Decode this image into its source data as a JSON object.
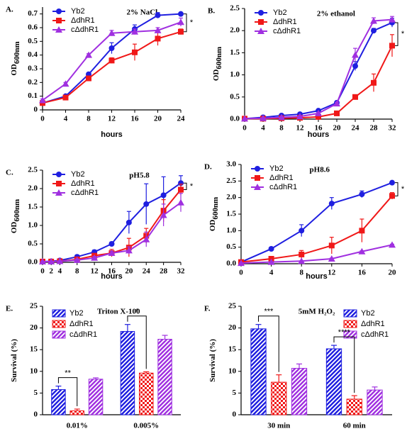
{
  "chart_data": [
    {
      "type": "line",
      "panel": "A.",
      "title": "2% NaCl",
      "xlabel": "hours",
      "ylabel": "OD",
      "ylabel_subscript": "600nm",
      "significance": "*",
      "legend": "upper left",
      "x": [
        0,
        4,
        8,
        12,
        16,
        20,
        24
      ],
      "xlim": [
        0,
        24
      ],
      "xticks": [
        0,
        4,
        8,
        12,
        16,
        20,
        24
      ],
      "ylim": [
        0,
        0.75
      ],
      "yticks": [
        0,
        0.1,
        0.2,
        0.3,
        0.4,
        0.5,
        0.6,
        0.7
      ],
      "series": [
        {
          "name": "Yb2",
          "color": "#1f1fe0",
          "marker": "circle",
          "values": [
            0.05,
            0.1,
            0.26,
            0.45,
            0.59,
            0.69,
            0.7
          ],
          "errors": [
            0.01,
            0.01,
            0.01,
            0.04,
            0.03,
            0.02,
            0.01
          ]
        },
        {
          "name": "ΔdhR1",
          "color": "#f01818",
          "marker": "square",
          "values": [
            0.05,
            0.09,
            0.23,
            0.36,
            0.42,
            0.52,
            0.57
          ],
          "errors": [
            0.01,
            0.01,
            0.01,
            0.02,
            0.06,
            0.05,
            0.02
          ]
        },
        {
          "name": "cΔdhR1",
          "color": "#a030e0",
          "marker": "triangle",
          "values": [
            0.07,
            0.19,
            0.4,
            0.56,
            0.57,
            0.58,
            0.64
          ],
          "errors": [
            0.01,
            0.01,
            0.01,
            0.02,
            0.02,
            0.02,
            0.03
          ]
        }
      ]
    },
    {
      "type": "line",
      "panel": "B.",
      "title": "2% ethanol",
      "xlabel": "hours",
      "ylabel": "OD",
      "ylabel_subscript": "600nm",
      "significance": "*",
      "legend": "upper left",
      "x": [
        0,
        4,
        8,
        12,
        16,
        20,
        24,
        28,
        32
      ],
      "xlim": [
        0,
        32
      ],
      "xticks": [
        0,
        4,
        8,
        12,
        16,
        20,
        24,
        28,
        32
      ],
      "ylim": [
        0,
        2.5
      ],
      "yticks": [
        {
          "value": 0,
          "label": "0.0"
        },
        {
          "value": 0.5,
          "label": "0.5"
        },
        {
          "value": 1,
          "label": "1.0"
        },
        {
          "value": 1.5,
          "label": "1.5"
        },
        {
          "value": 2,
          "label": "2.0"
        },
        {
          "value": 2.5,
          "label": "2.5"
        }
      ],
      "series": [
        {
          "name": "Yb2",
          "color": "#1f1fe0",
          "marker": "circle",
          "values": [
            0.01,
            0.04,
            0.08,
            0.11,
            0.19,
            0.37,
            1.2,
            2.0,
            2.18
          ],
          "errors": [
            0.01,
            0.01,
            0.01,
            0.01,
            0.02,
            0.03,
            0.1,
            0.05,
            0.1
          ]
        },
        {
          "name": "ΔdhR1",
          "color": "#f01818",
          "marker": "square",
          "values": [
            0.01,
            0.01,
            0.02,
            0.03,
            0.05,
            0.13,
            0.5,
            0.82,
            1.66
          ],
          "errors": [
            0.01,
            0.01,
            0.01,
            0.01,
            0.01,
            0.02,
            0.03,
            0.2,
            0.25
          ]
        },
        {
          "name": "cΔdhR1",
          "color": "#a030e0",
          "marker": "triangle",
          "values": [
            0.01,
            0.02,
            0.04,
            0.06,
            0.13,
            0.35,
            1.45,
            2.22,
            2.25
          ],
          "errors": [
            0.01,
            0.01,
            0.01,
            0.01,
            0.02,
            0.03,
            0.15,
            0.07,
            0.07
          ]
        }
      ]
    },
    {
      "type": "line",
      "panel": "C.",
      "title": "pH5.8",
      "xlabel": "hours",
      "ylabel": "OD",
      "ylabel_subscript": "600nm",
      "significance": "*",
      "legend": "upper left",
      "x": [
        0,
        2,
        4,
        8,
        12,
        16,
        20,
        24,
        28,
        32
      ],
      "xlim": [
        0,
        32
      ],
      "xticks": [
        0,
        2,
        4,
        8,
        12,
        16,
        20,
        24,
        28,
        32
      ],
      "ylim": [
        0,
        2.5
      ],
      "yticks": [
        {
          "value": 0,
          "label": "0.0"
        },
        {
          "value": 0.5,
          "label": "0.5"
        },
        {
          "value": 1,
          "label": "1.0"
        },
        {
          "value": 1.5,
          "label": "1.5"
        },
        {
          "value": 2,
          "label": "2.0"
        },
        {
          "value": 2.5,
          "label": "2.5"
        }
      ],
      "series": [
        {
          "name": "Yb2",
          "color": "#1f1fe0",
          "marker": "circle",
          "values": [
            0.02,
            0.03,
            0.05,
            0.15,
            0.28,
            0.5,
            1.08,
            1.58,
            1.82,
            2.15
          ],
          "errors": [
            0.01,
            0.01,
            0.01,
            0.05,
            0.05,
            0.05,
            0.3,
            0.55,
            0.5,
            0.2
          ]
        },
        {
          "name": "ΔdhR1",
          "color": "#f01818",
          "marker": "square",
          "values": [
            0.02,
            0.02,
            0.03,
            0.08,
            0.18,
            0.25,
            0.4,
            0.72,
            1.4,
            1.97
          ],
          "errors": [
            0.01,
            0.01,
            0.01,
            0.03,
            0.05,
            0.1,
            0.25,
            0.2,
            0.3,
            0.15
          ]
        },
        {
          "name": "cΔdhR1",
          "color": "#a030e0",
          "marker": "triangle",
          "values": [
            0.02,
            0.02,
            0.03,
            0.06,
            0.12,
            0.25,
            0.32,
            0.62,
            1.28,
            1.62
          ],
          "errors": [
            0.01,
            0.01,
            0.01,
            0.03,
            0.04,
            0.05,
            0.1,
            0.2,
            0.3,
            0.25
          ]
        }
      ]
    },
    {
      "type": "line",
      "panel": "D.",
      "title": "pH8.6",
      "xlabel": "hours",
      "ylabel": "OD",
      "ylabel_subscript": "600nm",
      "significance": "*",
      "legend": "upper left",
      "x": [
        0,
        4,
        8,
        12,
        16,
        20
      ],
      "xlim": [
        0,
        20
      ],
      "xticks": [
        0,
        4,
        8,
        12,
        16,
        20
      ],
      "ylim": [
        0,
        3
      ],
      "yticks": [
        {
          "value": 0,
          "label": "0.0"
        },
        {
          "value": 0.5,
          "label": "0.5"
        },
        {
          "value": 1,
          "label": "1.0"
        },
        {
          "value": 1.5,
          "label": "1.5"
        },
        {
          "value": 2,
          "label": "2.0"
        },
        {
          "value": 2.5,
          "label": "2.5"
        },
        {
          "value": 3,
          "label": "3.0"
        }
      ],
      "series": [
        {
          "name": "Yb2",
          "color": "#1f1fe0",
          "marker": "circle",
          "values": [
            0.05,
            0.45,
            1.0,
            1.82,
            2.1,
            2.45
          ],
          "errors": [
            0.01,
            0.05,
            0.18,
            0.18,
            0.1,
            0.03
          ]
        },
        {
          "name": "ΔdhR1",
          "color": "#f01818",
          "marker": "square",
          "values": [
            0.05,
            0.15,
            0.28,
            0.55,
            1.0,
            2.05
          ],
          "errors": [
            0.01,
            0.05,
            0.12,
            0.25,
            0.35,
            0.1
          ]
        },
        {
          "name": "cΔdhR1",
          "color": "#a030e0",
          "marker": "triangle",
          "values": [
            0.02,
            0.05,
            0.08,
            0.15,
            0.37,
            0.57
          ],
          "errors": [
            0.01,
            0.01,
            0.01,
            0.02,
            0.02,
            0.02
          ]
        }
      ]
    },
    {
      "type": "bar",
      "panel": "E.",
      "title": "Triton X-100",
      "ylabel": "Survival (%)",
      "legend": "upper left",
      "categories": [
        "0.01%",
        "0.005%"
      ],
      "ylim": [
        0,
        25
      ],
      "yticks": [
        0,
        5,
        10,
        15,
        20,
        25
      ],
      "significance": [
        "**",
        "*"
      ],
      "series": [
        {
          "name": "Yb2",
          "color": "#1f1fe0",
          "values": [
            5.8,
            19.2
          ],
          "errors": [
            0.8,
            1.6
          ]
        },
        {
          "name": "ΔdhR1",
          "color": "#f01818",
          "values": [
            0.9,
            9.6
          ],
          "errors": [
            0.4,
            0.3
          ]
        },
        {
          "name": "cΔdhR1",
          "color": "#a030e0",
          "values": [
            8.2,
            17.4
          ],
          "errors": [
            0.3,
            0.9
          ]
        }
      ]
    },
    {
      "type": "bar",
      "panel": "F.",
      "title": "5mM H₂O₂",
      "ylabel": "Survival (%)",
      "legend": "upper right",
      "categories": [
        "30 min",
        "60 min"
      ],
      "ylim": [
        0,
        25
      ],
      "yticks": [
        0,
        5,
        10,
        15,
        20,
        25
      ],
      "significance": [
        "***",
        "****"
      ],
      "series": [
        {
          "name": "Yb2",
          "color": "#1f1fe0",
          "values": [
            19.8,
            15.2
          ],
          "errors": [
            1.0,
            0.8
          ]
        },
        {
          "name": "ΔdhR1",
          "color": "#f01818",
          "values": [
            7.5,
            3.6
          ],
          "errors": [
            1.7,
            0.8
          ]
        },
        {
          "name": "cΔdhR1",
          "color": "#a030e0",
          "values": [
            10.7,
            5.7
          ],
          "errors": [
            1.0,
            0.7
          ]
        }
      ]
    }
  ]
}
